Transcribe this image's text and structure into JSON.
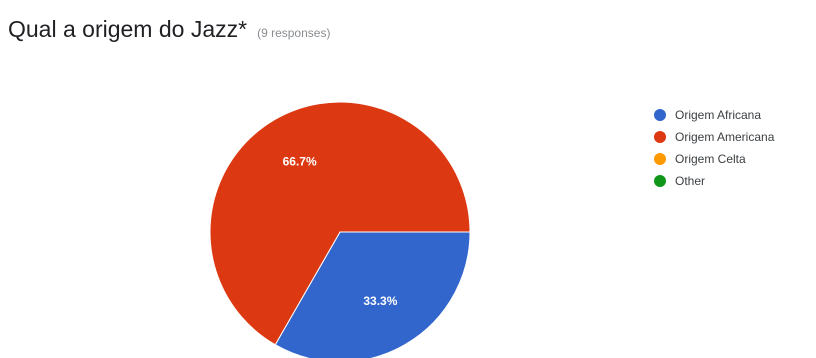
{
  "question": {
    "title": "Qual a origem do Jazz*",
    "response_count": "(9 responses)"
  },
  "chart_data": {
    "type": "pie",
    "slices": [
      {
        "label": "Origem Africana",
        "value": 33.3,
        "display": "33.3%",
        "color": "#3366cc"
      },
      {
        "label": "Origem Americana",
        "value": 66.7,
        "display": "66.7%",
        "color": "#dc3912"
      },
      {
        "label": "Origem Celta",
        "value": 0,
        "display": "",
        "color": "#ff9900"
      },
      {
        "label": "Other",
        "value": 0,
        "display": "",
        "color": "#109618"
      }
    ],
    "legend": "right"
  }
}
